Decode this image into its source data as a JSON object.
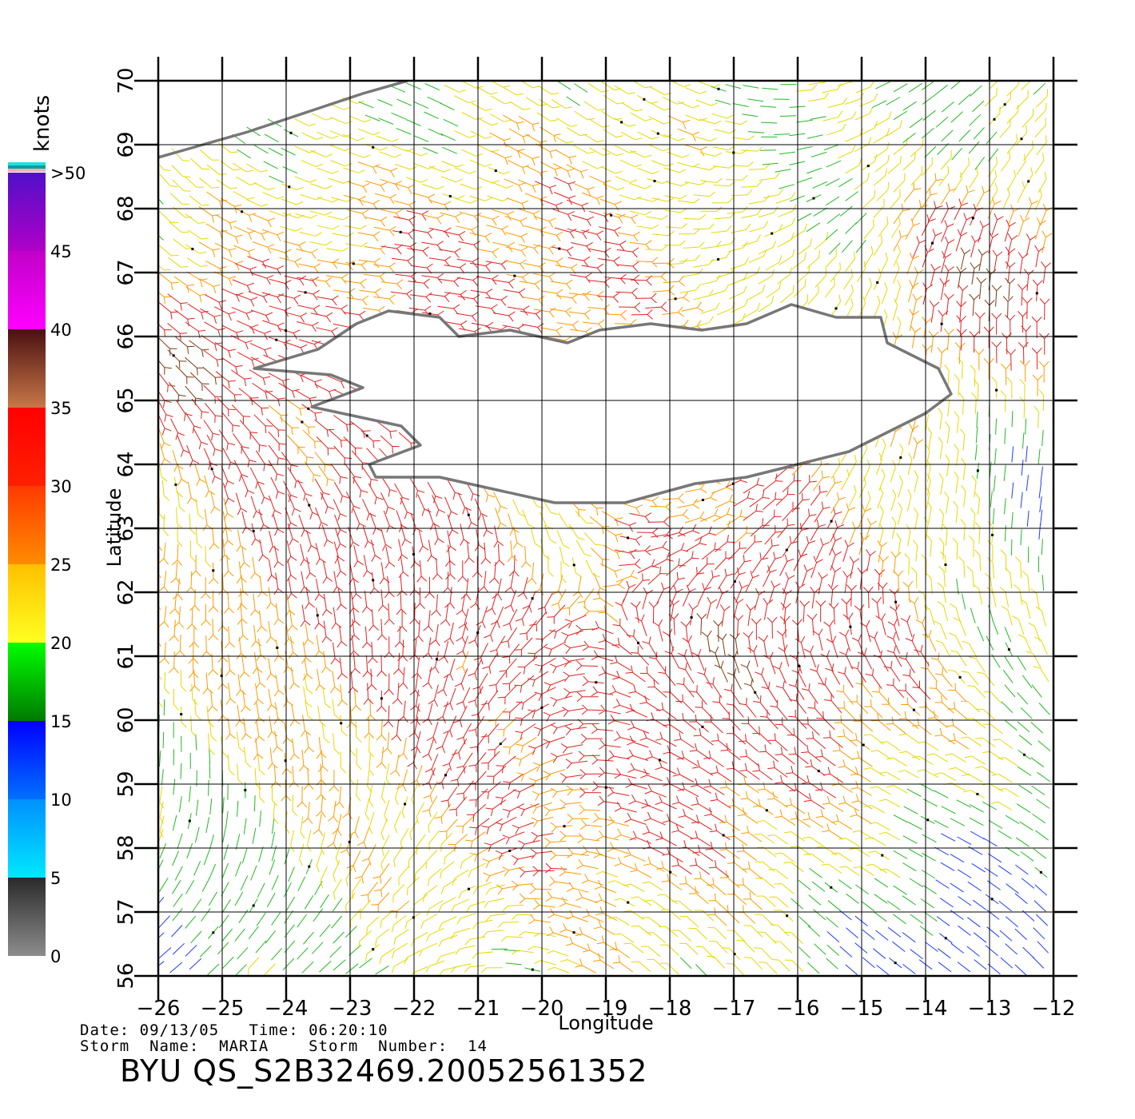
{
  "colorbar": {
    "unit": "knots",
    "labels": [
      "0",
      "5",
      "10",
      "15",
      "20",
      "25",
      "30",
      "35",
      "40",
      "45",
      ">50"
    ],
    "bands": [
      {
        "from": 0,
        "to": 5,
        "colors": [
          "#8c8c8c",
          "#2a2a2a"
        ]
      },
      {
        "from": 5,
        "to": 10,
        "colors": [
          "#00e8ff",
          "#0090ff"
        ]
      },
      {
        "from": 10,
        "to": 15,
        "colors": [
          "#0070ff",
          "#0000ff"
        ]
      },
      {
        "from": 15,
        "to": 20,
        "colors": [
          "#007a00",
          "#00ff00"
        ]
      },
      {
        "from": 20,
        "to": 25,
        "colors": [
          "#ffff20",
          "#ffc000"
        ]
      },
      {
        "from": 25,
        "to": 30,
        "colors": [
          "#ff8c00",
          "#ff3a00"
        ]
      },
      {
        "from": 30,
        "to": 35,
        "colors": [
          "#ff2000",
          "#ff0000"
        ]
      },
      {
        "from": 35,
        "to": 40,
        "colors": [
          "#c87848",
          "#4a1010"
        ]
      },
      {
        "from": 40,
        "to": 45,
        "colors": [
          "#ff00ff",
          "#c000c8"
        ]
      },
      {
        "from": 45,
        "to": 50,
        "colors": [
          "#b000c8",
          "#5010c8"
        ]
      }
    ],
    "top_stripes": [
      "#ffb0b0",
      "#00a0a0",
      "#20e0e0"
    ]
  },
  "map": {
    "xlabel": "Longitude",
    "ylabel": "Latitude",
    "lon_range": [
      -26,
      -12
    ],
    "lat_range": [
      56,
      70
    ],
    "lon_ticks": [
      "−26",
      "−25",
      "−24",
      "−23",
      "−22",
      "−21",
      "−20",
      "−19",
      "−18",
      "−17",
      "−16",
      "−15",
      "−14",
      "−13",
      "−12"
    ],
    "lat_ticks": [
      "56",
      "57",
      "58",
      "59",
      "60",
      "61",
      "62",
      "63",
      "64",
      "65",
      "66",
      "67",
      "68",
      "69",
      "70"
    ],
    "grid": true,
    "coast_color": "#777777",
    "iceland_coast_lonlat": [
      [
        -24.5,
        65.5
      ],
      [
        -23.5,
        65.8
      ],
      [
        -22.9,
        66.2
      ],
      [
        -22.4,
        66.4
      ],
      [
        -21.6,
        66.3
      ],
      [
        -21.3,
        66.0
      ],
      [
        -20.5,
        66.1
      ],
      [
        -19.6,
        65.9
      ],
      [
        -19.1,
        66.1
      ],
      [
        -18.3,
        66.2
      ],
      [
        -17.5,
        66.1
      ],
      [
        -16.8,
        66.2
      ],
      [
        -16.1,
        66.5
      ],
      [
        -15.4,
        66.3
      ],
      [
        -14.7,
        66.3
      ],
      [
        -14.6,
        65.9
      ],
      [
        -13.8,
        65.5
      ],
      [
        -13.6,
        65.1
      ],
      [
        -14.0,
        64.8
      ],
      [
        -14.6,
        64.5
      ],
      [
        -15.2,
        64.2
      ],
      [
        -16.0,
        64.0
      ],
      [
        -16.8,
        63.8
      ],
      [
        -17.6,
        63.7
      ],
      [
        -18.7,
        63.4
      ],
      [
        -19.8,
        63.4
      ],
      [
        -20.7,
        63.6
      ],
      [
        -21.6,
        63.8
      ],
      [
        -22.6,
        63.8
      ],
      [
        -22.7,
        64.0
      ],
      [
        -21.9,
        64.3
      ],
      [
        -22.2,
        64.6
      ],
      [
        -23.6,
        64.9
      ],
      [
        -22.8,
        65.2
      ],
      [
        -23.3,
        65.4
      ],
      [
        -24.5,
        65.5
      ]
    ],
    "greenland_coast_lonlat": [
      [
        -26.0,
        68.8
      ],
      [
        -25.3,
        69.0
      ],
      [
        -24.6,
        69.2
      ],
      [
        -24.0,
        69.4
      ],
      [
        -23.4,
        69.6
      ],
      [
        -22.8,
        69.8
      ],
      [
        -22.1,
        70.0
      ]
    ],
    "wind_colors": {
      "blue": "#1e3cff",
      "green": "#22b822",
      "yellow": "#e6d800",
      "orange": "#ff9a00",
      "red": "#e32020",
      "brown": "#7a3a10",
      "purple": "#a020c0"
    }
  },
  "info": {
    "date_line": "Date: 09/13/05   Time: 06:20:10",
    "storm_line": "Storm  Name:  MARIA    Storm  Number:  14",
    "file_id": "BYU  QS_S2B32469.20052561352"
  }
}
